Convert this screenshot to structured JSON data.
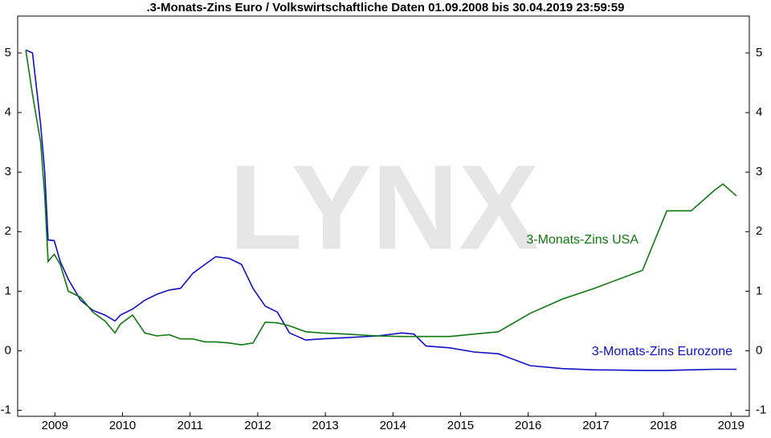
{
  "chart_data": {
    "type": "line",
    "title": ".3-Monats-Zins Euro / Volkswirtschaftliche Daten 01.09.2008 bis 30.04.2019 23:59:59",
    "watermark": "LYNX",
    "x": [
      2008.57,
      2008.67,
      2008.79,
      2008.85,
      2008.9,
      2008.99,
      2009.08,
      2009.2,
      2009.38,
      2009.56,
      2009.74,
      2009.89,
      2009.97,
      2010.15,
      2010.33,
      2010.51,
      2010.69,
      2010.86,
      2011.04,
      2011.22,
      2011.38,
      2011.58,
      2011.76,
      2011.93,
      2012.11,
      2012.29,
      2012.47,
      2012.71,
      2012.94,
      2013.3,
      2013.77,
      2014.13,
      2014.31,
      2014.49,
      2014.84,
      2015.2,
      2015.56,
      2016.03,
      2016.51,
      2016.98,
      2017.69,
      2018.05,
      2018.41,
      2018.76,
      2018.88,
      2019.08
    ],
    "series": [
      {
        "name": "3-Monats-Zins Eurozone",
        "color": "#1010c8",
        "values": [
          5.05,
          5.0,
          3.8,
          3.0,
          1.86,
          1.85,
          1.5,
          1.2,
          0.85,
          0.68,
          0.6,
          0.5,
          0.6,
          0.7,
          0.85,
          0.95,
          1.02,
          1.05,
          1.3,
          1.45,
          1.58,
          1.55,
          1.45,
          1.05,
          0.75,
          0.65,
          0.3,
          0.18,
          0.2,
          0.22,
          0.25,
          0.3,
          0.28,
          0.08,
          0.05,
          -0.02,
          -0.05,
          -0.25,
          -0.3,
          -0.32,
          -0.33,
          -0.33,
          -0.32,
          -0.31,
          -0.31,
          -0.31
        ]
      },
      {
        "name": "3-Monats-Zins USA",
        "color": "#107810",
        "values": [
          5.05,
          4.3,
          3.5,
          2.6,
          1.5,
          1.62,
          1.45,
          1.0,
          0.9,
          0.65,
          0.5,
          0.3,
          0.45,
          0.6,
          0.3,
          0.25,
          0.27,
          0.2,
          0.2,
          0.15,
          0.15,
          0.13,
          0.1,
          0.13,
          0.48,
          0.47,
          0.42,
          0.32,
          0.3,
          0.28,
          0.25,
          0.24,
          0.24,
          0.24,
          0.24,
          0.28,
          0.32,
          0.63,
          0.87,
          1.05,
          1.35,
          2.35,
          2.35,
          2.7,
          2.8,
          2.6
        ]
      }
    ],
    "xlim": [
      2008.45,
      2019.27
    ],
    "xticks": [
      2009,
      2010,
      2011,
      2012,
      2013,
      2014,
      2015,
      2016,
      2017,
      2018,
      2019
    ],
    "ylim": [
      -1.1,
      5.62
    ],
    "yticks": [
      -1,
      0,
      1,
      2,
      3,
      4,
      5
    ]
  }
}
